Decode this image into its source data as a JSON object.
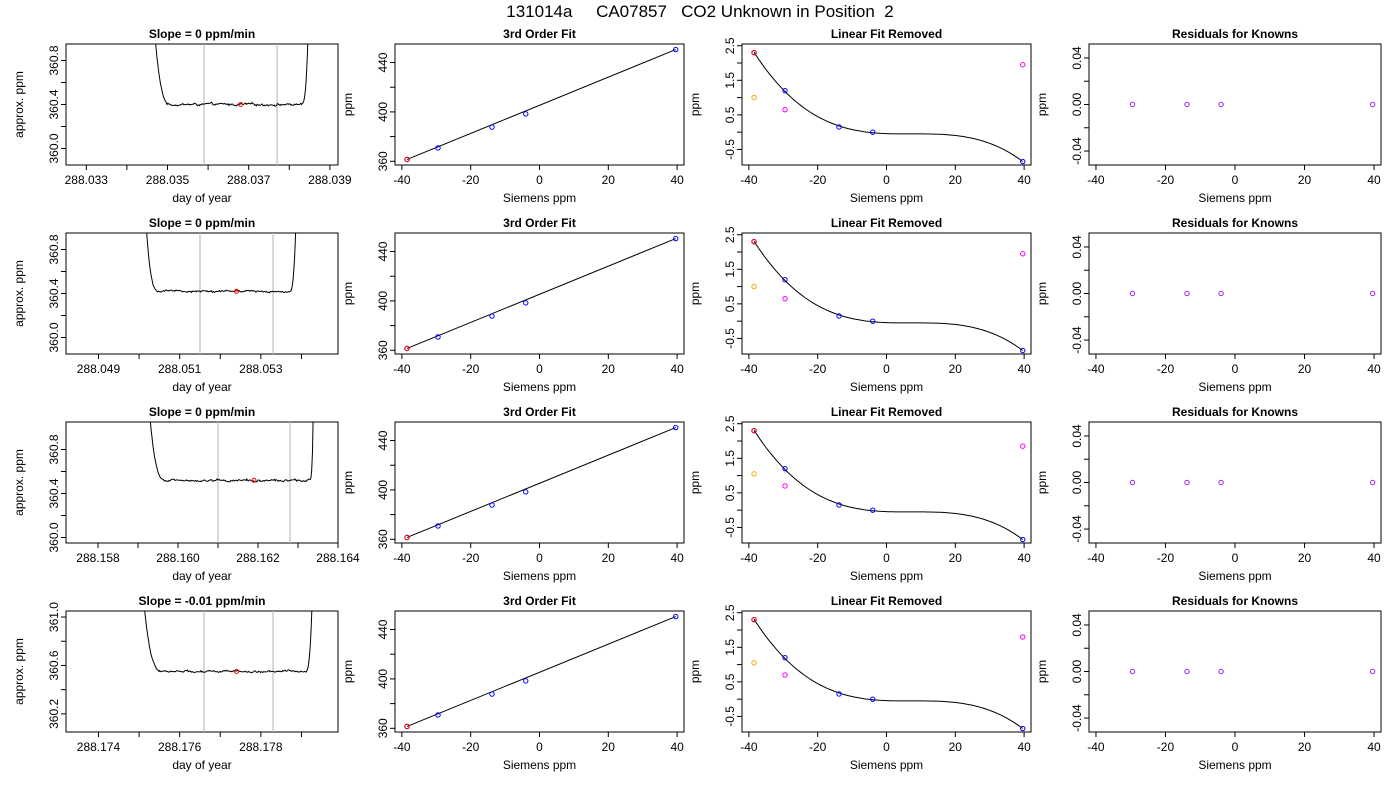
{
  "page": {
    "title": "131014a     CA07857   CO2 Unknown in Position  2"
  },
  "colors": {
    "axis": "#000000",
    "trace": "#000000",
    "vline": "#bfbfbf",
    "point_known": "#0000ff",
    "point_red": "#ff0000",
    "point_orange": "#ffa500",
    "point_magenta": "#ff00ff",
    "point_residual": "#a020f0"
  },
  "chart_data": [
    {
      "type": "line",
      "row": 0,
      "col": 0,
      "title": "Slope =  0  ppm/min",
      "xlabel": "day of year",
      "ylabel": "approx. ppm",
      "xlim": [
        288.0325,
        288.0392
      ],
      "ylim": [
        359.85,
        360.95
      ],
      "xticks": [
        288.033,
        288.035,
        288.037,
        288.039
      ],
      "xtick_labels": [
        "288.033",
        "288.035",
        "288.037",
        "288.039"
      ],
      "xticks_minor": [
        288.034,
        288.036,
        288.038
      ],
      "yticks": [
        360.0,
        360.4,
        360.8
      ],
      "ytick_labels": [
        "360.0",
        "360.4",
        "360.8"
      ],
      "yticks_minor": [
        360.2,
        360.6
      ],
      "trace": {
        "x_start": 288.0346,
        "x_end": 288.0385,
        "x_level_start": 288.0351,
        "x_level_end": 288.0383,
        "level": 360.4,
        "noise": 0.012
      },
      "vlines": [
        288.0359,
        288.0377
      ],
      "marker": {
        "x": 288.0368,
        "y": 360.4
      }
    },
    {
      "type": "scatter",
      "row": 0,
      "col": 1,
      "title": "3rd Order Fit",
      "xlabel": "Siemens ppm",
      "ylabel": "ppm",
      "xlim": [
        -42,
        42
      ],
      "ylim": [
        357,
        455
      ],
      "xticks": [
        -40,
        -20,
        0,
        20,
        40
      ],
      "xtick_labels": [
        "-40",
        "-20",
        "0",
        "20",
        "40"
      ],
      "yticks": [
        360,
        400,
        440
      ],
      "ytick_labels": [
        "360",
        "400",
        "440"
      ],
      "yticks_minor": [
        380,
        420
      ],
      "points": [
        {
          "x": -38.5,
          "y": 361.5
        },
        {
          "x": -29.5,
          "y": 370.8
        },
        {
          "x": -13.8,
          "y": 387.7
        },
        {
          "x": -4.0,
          "y": 398.4
        },
        {
          "x": 39.6,
          "y": 450.5
        }
      ],
      "red_point": {
        "x": -38.5,
        "y": 361.5
      }
    },
    {
      "type": "scatter",
      "row": 0,
      "col": 2,
      "title": "Linear Fit Removed",
      "xlabel": "Siemens ppm",
      "ylabel": "ppm",
      "xlim": [
        -42,
        42
      ],
      "ylim": [
        -0.95,
        2.55
      ],
      "xticks": [
        -40,
        -20,
        0,
        20,
        40
      ],
      "xtick_labels": [
        "-40",
        "-20",
        "0",
        "20",
        "40"
      ],
      "yticks": [
        -0.5,
        0.5,
        1.5,
        2.5
      ],
      "ytick_labels": [
        "-0.5",
        "0.5",
        "1.5",
        "2.5"
      ],
      "yticks_minor": [
        0.0,
        1.0,
        2.0
      ],
      "curve": [
        {
          "x": -38.5,
          "y": 2.3
        },
        {
          "x": -29.5,
          "y": 1.2
        },
        {
          "x": -13.8,
          "y": 0.15
        },
        {
          "x": -4.0,
          "y": 0.0
        },
        {
          "x": 39.6,
          "y": -0.85
        }
      ],
      "points": [
        {
          "x": -38.5,
          "y": 2.3
        },
        {
          "x": -29.5,
          "y": 1.2
        },
        {
          "x": -13.8,
          "y": 0.15
        },
        {
          "x": -4.0,
          "y": 0.0
        },
        {
          "x": 39.6,
          "y": -0.85
        }
      ],
      "red_point": {
        "x": -38.5,
        "y": 2.3
      },
      "orange_point": {
        "x": -38.5,
        "y": 1.0
      },
      "magenta_points": [
        {
          "x": -29.5,
          "y": 0.65
        },
        {
          "x": 39.6,
          "y": 1.95
        }
      ]
    },
    {
      "type": "scatter",
      "row": 0,
      "col": 3,
      "title": "Residuals for Knowns",
      "xlabel": "Siemens ppm",
      "ylabel": "ppm",
      "xlim": [
        -42,
        42
      ],
      "ylim": [
        -0.052,
        0.052
      ],
      "xticks": [
        -40,
        -20,
        0,
        20,
        40
      ],
      "xtick_labels": [
        "-40",
        "-20",
        "0",
        "20",
        "40"
      ],
      "yticks": [
        -0.04,
        0.0,
        0.04
      ],
      "ytick_labels": [
        "-0.04",
        "0.00",
        "0.04"
      ],
      "yticks_minor": [
        -0.02,
        0.02
      ],
      "points": [
        {
          "x": -29.5,
          "y": 0.0
        },
        {
          "x": -13.8,
          "y": 0.0
        },
        {
          "x": -4.0,
          "y": 0.0
        },
        {
          "x": 39.6,
          "y": 0.0
        }
      ]
    },
    {
      "type": "line",
      "row": 1,
      "col": 0,
      "title": "Slope =  0  ppm/min",
      "xlabel": "day of year",
      "ylabel": "approx. ppm",
      "xlim": [
        288.0482,
        288.0549
      ],
      "ylim": [
        359.85,
        360.95
      ],
      "xticks": [
        288.049,
        288.051,
        288.053
      ],
      "xtick_labels": [
        "288.049",
        "288.051",
        "288.053"
      ],
      "xticks_minor": [
        288.05,
        288.052,
        288.054
      ],
      "yticks": [
        360.0,
        360.4,
        360.8
      ],
      "ytick_labels": [
        "360.0",
        "360.4",
        "360.8"
      ],
      "yticks_minor": [
        360.2,
        360.6
      ],
      "trace": {
        "x_start": 288.0501,
        "x_end": 288.0539,
        "x_level_start": 288.0505,
        "x_level_end": 288.0537,
        "level": 360.42,
        "noise": 0.01
      },
      "vlines": [
        288.0515,
        288.0533
      ],
      "marker": {
        "x": 288.0524,
        "y": 360.42
      }
    },
    {
      "type": "scatter",
      "row": 1,
      "col": 1,
      "title": "3rd Order Fit",
      "xlabel": "Siemens ppm",
      "ylabel": "ppm",
      "xlim": [
        -42,
        42
      ],
      "ylim": [
        357,
        455
      ],
      "xticks": [
        -40,
        -20,
        0,
        20,
        40
      ],
      "xtick_labels": [
        "-40",
        "-20",
        "0",
        "20",
        "40"
      ],
      "yticks": [
        360,
        400,
        440
      ],
      "ytick_labels": [
        "360",
        "400",
        "440"
      ],
      "yticks_minor": [
        380,
        420
      ],
      "points": [
        {
          "x": -38.5,
          "y": 361.5
        },
        {
          "x": -29.5,
          "y": 370.8
        },
        {
          "x": -13.8,
          "y": 387.7
        },
        {
          "x": -4.0,
          "y": 398.4
        },
        {
          "x": 39.6,
          "y": 450.5
        }
      ],
      "red_point": {
        "x": -38.5,
        "y": 361.5
      }
    },
    {
      "type": "scatter",
      "row": 1,
      "col": 2,
      "title": "Linear Fit Removed",
      "xlabel": "Siemens ppm",
      "ylabel": "ppm",
      "xlim": [
        -42,
        42
      ],
      "ylim": [
        -0.95,
        2.55
      ],
      "xticks": [
        -40,
        -20,
        0,
        20,
        40
      ],
      "xtick_labels": [
        "-40",
        "-20",
        "0",
        "20",
        "40"
      ],
      "yticks": [
        -0.5,
        0.5,
        1.5,
        2.5
      ],
      "ytick_labels": [
        "-0.5",
        "0.5",
        "1.5",
        "2.5"
      ],
      "yticks_minor": [
        0.0,
        1.0,
        2.0
      ],
      "curve": [
        {
          "x": -38.5,
          "y": 2.3
        },
        {
          "x": -29.5,
          "y": 1.2
        },
        {
          "x": -13.8,
          "y": 0.15
        },
        {
          "x": -4.0,
          "y": 0.0
        },
        {
          "x": 39.6,
          "y": -0.85
        }
      ],
      "points": [
        {
          "x": -38.5,
          "y": 2.3
        },
        {
          "x": -29.5,
          "y": 1.2
        },
        {
          "x": -13.8,
          "y": 0.15
        },
        {
          "x": -4.0,
          "y": 0.0
        },
        {
          "x": 39.6,
          "y": -0.85
        }
      ],
      "red_point": {
        "x": -38.5,
        "y": 2.3
      },
      "orange_point": {
        "x": -38.5,
        "y": 1.0
      },
      "magenta_points": [
        {
          "x": -29.5,
          "y": 0.65
        },
        {
          "x": 39.6,
          "y": 1.95
        }
      ]
    },
    {
      "type": "scatter",
      "row": 1,
      "col": 3,
      "title": "Residuals for Knowns",
      "xlabel": "Siemens ppm",
      "ylabel": "ppm",
      "xlim": [
        -42,
        42
      ],
      "ylim": [
        -0.052,
        0.052
      ],
      "xticks": [
        -40,
        -20,
        0,
        20,
        40
      ],
      "xtick_labels": [
        "-40",
        "-20",
        "0",
        "20",
        "40"
      ],
      "yticks": [
        -0.04,
        0.0,
        0.04
      ],
      "ytick_labels": [
        "-0.04",
        "0.00",
        "0.04"
      ],
      "yticks_minor": [
        -0.02,
        0.02
      ],
      "points": [
        {
          "x": -29.5,
          "y": 0.0
        },
        {
          "x": -13.8,
          "y": 0.0
        },
        {
          "x": -4.0,
          "y": 0.0
        },
        {
          "x": 39.6,
          "y": 0.0
        }
      ]
    },
    {
      "type": "line",
      "row": 2,
      "col": 0,
      "title": "Slope =  0  ppm/min",
      "xlabel": "day of year",
      "ylabel": "approx. ppm",
      "xlim": [
        288.1572,
        288.164
      ],
      "ylim": [
        359.95,
        361.05
      ],
      "xticks": [
        288.158,
        288.16,
        288.162,
        288.164
      ],
      "xtick_labels": [
        "288.158",
        "288.160",
        "288.162",
        "288.164"
      ],
      "xticks_minor": [
        288.159,
        288.161,
        288.163
      ],
      "yticks": [
        360.0,
        360.4,
        360.8
      ],
      "ytick_labels": [
        "360.0",
        "360.4",
        "360.8"
      ],
      "yticks_minor": [
        360.2,
        360.6
      ],
      "trace": {
        "x_start": 288.1592,
        "x_end": 288.1634,
        "x_level_start": 288.1597,
        "x_level_end": 288.1633,
        "level": 360.52,
        "noise": 0.012
      },
      "vlines": [
        288.161,
        288.1628
      ],
      "marker": {
        "x": 288.1619,
        "y": 360.52
      }
    },
    {
      "type": "scatter",
      "row": 2,
      "col": 1,
      "title": "3rd Order Fit",
      "xlabel": "Siemens ppm",
      "ylabel": "ppm",
      "xlim": [
        -42,
        42
      ],
      "ylim": [
        357,
        455
      ],
      "xticks": [
        -40,
        -20,
        0,
        20,
        40
      ],
      "xtick_labels": [
        "-40",
        "-20",
        "0",
        "20",
        "40"
      ],
      "yticks": [
        360,
        400,
        440
      ],
      "ytick_labels": [
        "360",
        "400",
        "440"
      ],
      "yticks_minor": [
        380,
        420
      ],
      "points": [
        {
          "x": -38.5,
          "y": 361.5
        },
        {
          "x": -29.5,
          "y": 370.8
        },
        {
          "x": -13.8,
          "y": 387.7
        },
        {
          "x": -4.0,
          "y": 398.4
        },
        {
          "x": 39.6,
          "y": 450.5
        }
      ],
      "red_point": {
        "x": -38.5,
        "y": 361.5
      }
    },
    {
      "type": "scatter",
      "row": 2,
      "col": 2,
      "title": "Linear Fit Removed",
      "xlabel": "Siemens ppm",
      "ylabel": "ppm",
      "xlim": [
        -42,
        42
      ],
      "ylim": [
        -0.95,
        2.55
      ],
      "xticks": [
        -40,
        -20,
        0,
        20,
        40
      ],
      "xtick_labels": [
        "-40",
        "-20",
        "0",
        "20",
        "40"
      ],
      "yticks": [
        -0.5,
        0.5,
        1.5,
        2.5
      ],
      "ytick_labels": [
        "-0.5",
        "0.5",
        "1.5",
        "2.5"
      ],
      "yticks_minor": [
        0.0,
        1.0,
        2.0
      ],
      "curve": [
        {
          "x": -38.5,
          "y": 2.3
        },
        {
          "x": -29.5,
          "y": 1.2
        },
        {
          "x": -13.8,
          "y": 0.15
        },
        {
          "x": -4.0,
          "y": 0.0
        },
        {
          "x": 39.6,
          "y": -0.85
        }
      ],
      "points": [
        {
          "x": -38.5,
          "y": 2.3
        },
        {
          "x": -29.5,
          "y": 1.2
        },
        {
          "x": -13.8,
          "y": 0.15
        },
        {
          "x": -4.0,
          "y": 0.0
        },
        {
          "x": 39.6,
          "y": -0.85
        }
      ],
      "red_point": {
        "x": -38.5,
        "y": 2.3
      },
      "orange_point": {
        "x": -38.5,
        "y": 1.05
      },
      "magenta_points": [
        {
          "x": -29.5,
          "y": 0.7
        },
        {
          "x": 39.6,
          "y": 1.85
        }
      ]
    },
    {
      "type": "scatter",
      "row": 2,
      "col": 3,
      "title": "Residuals for Knowns",
      "xlabel": "Siemens ppm",
      "ylabel": "ppm",
      "xlim": [
        -42,
        42
      ],
      "ylim": [
        -0.052,
        0.052
      ],
      "xticks": [
        -40,
        -20,
        0,
        20,
        40
      ],
      "xtick_labels": [
        "-40",
        "-20",
        "0",
        "20",
        "40"
      ],
      "yticks": [
        -0.04,
        0.0,
        0.04
      ],
      "ytick_labels": [
        "-0.04",
        "0.00",
        "0.04"
      ],
      "yticks_minor": [
        -0.02,
        0.02
      ],
      "points": [
        {
          "x": -29.5,
          "y": 0.0
        },
        {
          "x": -13.8,
          "y": 0.0
        },
        {
          "x": -4.0,
          "y": 0.0
        },
        {
          "x": 39.6,
          "y": 0.0
        }
      ]
    },
    {
      "type": "line",
      "row": 3,
      "col": 0,
      "title": "Slope =  -0.01  ppm/min",
      "xlabel": "day of year",
      "ylabel": "approx. ppm",
      "xlim": [
        288.1732,
        288.1799
      ],
      "ylim": [
        360.05,
        361.05
      ],
      "xticks": [
        288.174,
        288.176,
        288.178
      ],
      "xtick_labels": [
        "288.174",
        "288.176",
        "288.178"
      ],
      "xticks_minor": [
        288.175,
        288.177,
        288.179
      ],
      "yticks": [
        360.2,
        360.6,
        361.0
      ],
      "ytick_labels": [
        "360.2",
        "360.6",
        "361.0"
      ],
      "yticks_minor": [
        360.4,
        360.8
      ],
      "trace": {
        "x_start": 288.175,
        "x_end": 288.1793,
        "x_level_start": 288.1756,
        "x_level_end": 288.1791,
        "level": 360.55,
        "noise": 0.01
      },
      "vlines": [
        288.1766,
        288.1783
      ],
      "marker": {
        "x": 288.1774,
        "y": 360.55
      }
    },
    {
      "type": "scatter",
      "row": 3,
      "col": 1,
      "title": "3rd Order Fit",
      "xlabel": "Siemens ppm",
      "ylabel": "ppm",
      "xlim": [
        -42,
        42
      ],
      "ylim": [
        357,
        455
      ],
      "xticks": [
        -40,
        -20,
        0,
        20,
        40
      ],
      "xtick_labels": [
        "-40",
        "-20",
        "0",
        "20",
        "40"
      ],
      "yticks": [
        360,
        400,
        440
      ],
      "ytick_labels": [
        "360",
        "400",
        "440"
      ],
      "yticks_minor": [
        380,
        420
      ],
      "points": [
        {
          "x": -38.5,
          "y": 361.5
        },
        {
          "x": -29.5,
          "y": 370.8
        },
        {
          "x": -13.8,
          "y": 387.7
        },
        {
          "x": -4.0,
          "y": 398.4
        },
        {
          "x": 39.6,
          "y": 450.5
        }
      ],
      "red_point": {
        "x": -38.5,
        "y": 361.5
      }
    },
    {
      "type": "scatter",
      "row": 3,
      "col": 2,
      "title": "Linear Fit Removed",
      "xlabel": "Siemens ppm",
      "ylabel": "ppm",
      "xlim": [
        -42,
        42
      ],
      "ylim": [
        -0.95,
        2.55
      ],
      "xticks": [
        -40,
        -20,
        0,
        20,
        40
      ],
      "xtick_labels": [
        "-40",
        "-20",
        "0",
        "20",
        "40"
      ],
      "yticks": [
        -0.5,
        0.5,
        1.5,
        2.5
      ],
      "ytick_labels": [
        "-0.5",
        "0.5",
        "1.5",
        "2.5"
      ],
      "yticks_minor": [
        0.0,
        1.0,
        2.0
      ],
      "curve": [
        {
          "x": -38.5,
          "y": 2.3
        },
        {
          "x": -29.5,
          "y": 1.2
        },
        {
          "x": -13.8,
          "y": 0.15
        },
        {
          "x": -4.0,
          "y": 0.0
        },
        {
          "x": 39.6,
          "y": -0.85
        }
      ],
      "points": [
        {
          "x": -38.5,
          "y": 2.3
        },
        {
          "x": -29.5,
          "y": 1.2
        },
        {
          "x": -13.8,
          "y": 0.15
        },
        {
          "x": -4.0,
          "y": 0.0
        },
        {
          "x": 39.6,
          "y": -0.85
        }
      ],
      "red_point": {
        "x": -38.5,
        "y": 2.3
      },
      "orange_point": {
        "x": -38.5,
        "y": 1.05
      },
      "magenta_points": [
        {
          "x": -29.5,
          "y": 0.7
        },
        {
          "x": 39.6,
          "y": 1.8
        }
      ]
    },
    {
      "type": "scatter",
      "row": 3,
      "col": 3,
      "title": "Residuals for Knowns",
      "xlabel": "Siemens ppm",
      "ylabel": "ppm",
      "xlim": [
        -42,
        42
      ],
      "ylim": [
        -0.052,
        0.052
      ],
      "xticks": [
        -40,
        -20,
        0,
        20,
        40
      ],
      "xtick_labels": [
        "-40",
        "-20",
        "0",
        "20",
        "40"
      ],
      "yticks": [
        -0.04,
        0.0,
        0.04
      ],
      "ytick_labels": [
        "-0.04",
        "0.00",
        "0.04"
      ],
      "yticks_minor": [
        -0.02,
        0.02
      ],
      "points": [
        {
          "x": -29.5,
          "y": 0.0
        },
        {
          "x": -13.8,
          "y": 0.0
        },
        {
          "x": -4.0,
          "y": 0.0
        },
        {
          "x": 39.6,
          "y": 0.0
        }
      ]
    }
  ]
}
